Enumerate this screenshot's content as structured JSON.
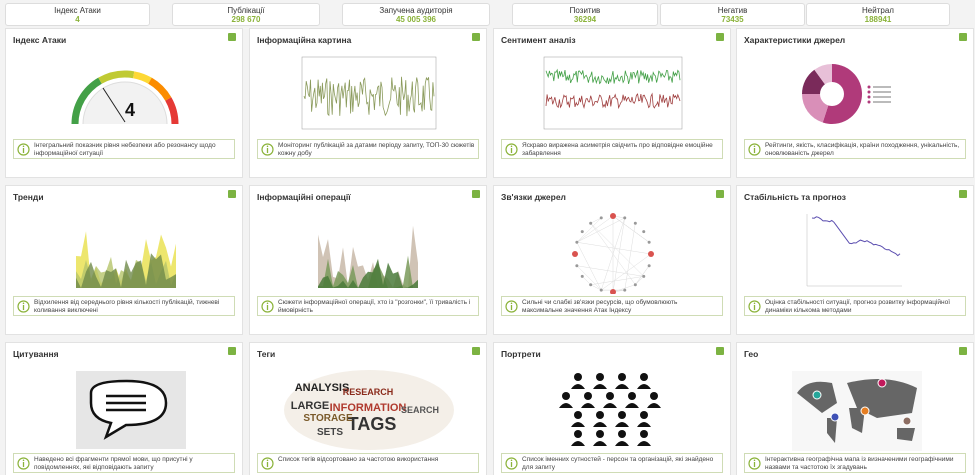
{
  "stats": [
    {
      "label": "Індекс Атаки",
      "value": "4"
    },
    {
      "label": "Публікації",
      "value": "298 670"
    },
    {
      "label": "Запучена аудиторія",
      "value": "45 005 396"
    },
    {
      "label": "Позитив",
      "value": "36294"
    },
    {
      "label": "Негатив",
      "value": "73435"
    },
    {
      "label": "Нейтрал",
      "value": "188941"
    }
  ],
  "tiles": [
    {
      "title": "Індекс Атаки",
      "gauge_value": "4",
      "description": "Інтегральний показник рівня небезпеки або резонансу щодо інформаційної ситуації"
    },
    {
      "title": "Інформаційна картина",
      "description": "Моніторинг публікацій за датами періоду запиту, ТОП-30 сюжетів кожну добу"
    },
    {
      "title": "Сентимент аналіз",
      "description": "Яскраво виражена асиметрія свідчить про відповідне емоційне забарвлення"
    },
    {
      "title": "Характеристики джерел",
      "description": "Рейтинги, якість, класифікація, країни походження, унікальність, оновлюваність джерел"
    },
    {
      "title": "Тренди",
      "description": "Відхилення від середнього рівня кількості публікацій, тижневі коливання виключені"
    },
    {
      "title": "Інформаційні операції",
      "description": "Сюжети інформаційної операції, хто із \"розгонки\", її тривалість і ймовірність"
    },
    {
      "title": "Зв'язки джерел",
      "description": "Сильні чи слабкі зв'язки ресурсів, що обумовлюють максимальне значення Атак Індексу"
    },
    {
      "title": "Стабільність та прогноз",
      "description": "Оцінка стабільності ситуації, прогноз розвитку інформаційної динаміки кількома методами"
    },
    {
      "title": "Цитування",
      "description": "Наведено всі фрагменти прямої мови, що присутні у повідомленнях, які відповідають запиту"
    },
    {
      "title": "Теги",
      "tag_words": [
        "ANALYSIS",
        "INFORMATION",
        "TAGS",
        "SEARCH",
        "STORAGE",
        "LARGE",
        "RESEARCH",
        "SETS"
      ],
      "description": "Список тегів відсортовано за частотою використання"
    },
    {
      "title": "Портрети",
      "description": "Список іменних сутностей - персон та організацій, які знайдено для запиту"
    },
    {
      "title": "Гео",
      "description": "Інтерактивна географічна мапа із визначеними географічними назвами та частотою їх згадувань"
    }
  ]
}
